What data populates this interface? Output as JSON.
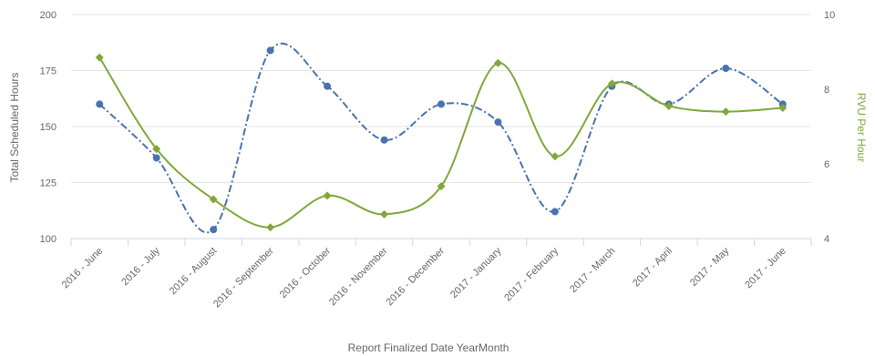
{
  "chart_data": {
    "type": "line",
    "xlabel": "Report Finalized Date YearMonth",
    "ylabel": "Total Scheduled Hours",
    "y2label": "RVU Per Hour",
    "categories": [
      "2016 - June",
      "2016 - July",
      "2016 - August",
      "2016 - September",
      "2016 - October",
      "2016 - November",
      "2016 - December",
      "2017 - January",
      "2017 - February",
      "2017 - March",
      "2017 - April",
      "2017 - May",
      "2017 - June"
    ],
    "ylim": [
      100,
      200
    ],
    "y_ticks": [
      100,
      125,
      150,
      175,
      200
    ],
    "y2lim": [
      4,
      10
    ],
    "y2_ticks": [
      4,
      6,
      8,
      10
    ],
    "grid": true,
    "series": [
      {
        "axis": "left",
        "color": "#4a72b0",
        "line_style": "dash-dot",
        "values": [
          160,
          136,
          104,
          184,
          168,
          144,
          160,
          152,
          112,
          168,
          160,
          176,
          160
        ]
      },
      {
        "axis": "right",
        "color": "#7fa83a",
        "line_style": "solid",
        "values": [
          8.85,
          6.4,
          5.05,
          4.3,
          5.15,
          4.65,
          5.4,
          8.7,
          6.2,
          8.15,
          7.55,
          7.4,
          7.5
        ]
      }
    ]
  }
}
